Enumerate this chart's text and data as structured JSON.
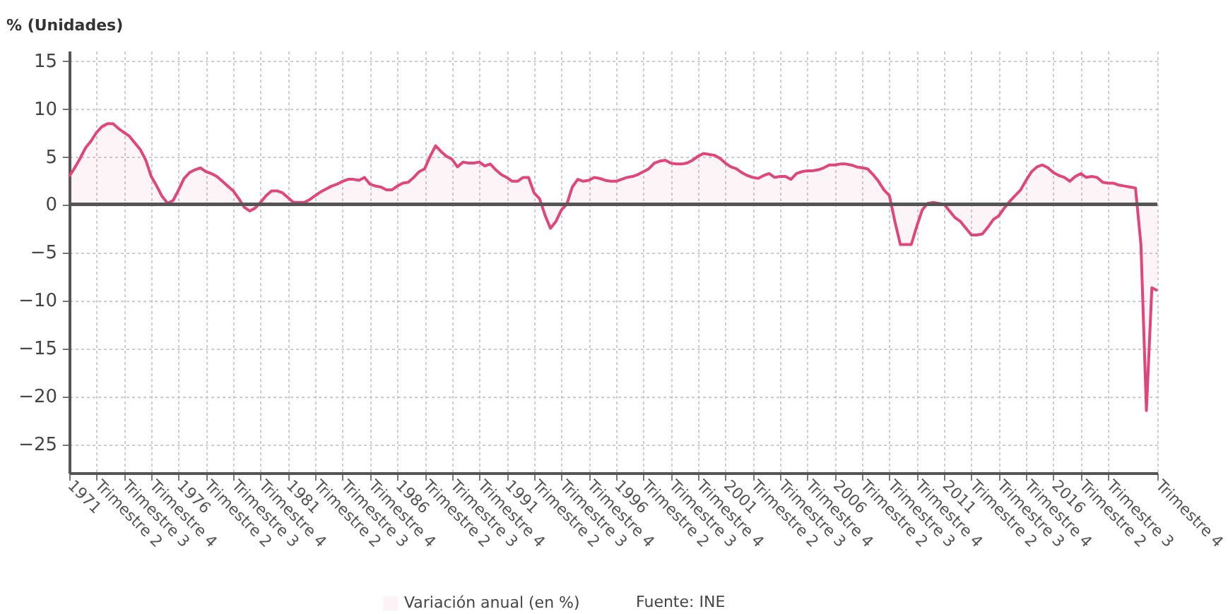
{
  "chart_data": {
    "type": "area",
    "ylabel": "% (Unidades)",
    "categories": [
      "1971",
      null,
      null,
      null,
      null,
      "Trimestre 2",
      null,
      null,
      null,
      null,
      "Trimestre 3",
      null,
      null,
      null,
      null,
      "Trimestre 4",
      null,
      null,
      null,
      null,
      "1976",
      null,
      null,
      null,
      null,
      "Trimestre 2",
      null,
      null,
      null,
      null,
      "Trimestre 3",
      null,
      null,
      null,
      null,
      "Trimestre 4",
      null,
      null,
      null,
      null,
      "1981",
      null,
      null,
      null,
      null,
      "Trimestre 2",
      null,
      null,
      null,
      null,
      "Trimestre 3",
      null,
      null,
      null,
      null,
      "Trimestre 4",
      null,
      null,
      null,
      null,
      "1986",
      null,
      null,
      null,
      null,
      "Trimestre 2",
      null,
      null,
      null,
      null,
      "Trimestre 3",
      null,
      null,
      null,
      null,
      "Trimestre 4",
      null,
      null,
      null,
      null,
      "1991",
      null,
      null,
      null,
      null,
      "Trimestre 2",
      null,
      null,
      null,
      null,
      "Trimestre 3",
      null,
      null,
      null,
      null,
      "Trimestre 4",
      null,
      null,
      null,
      null,
      "1996",
      null,
      null,
      null,
      null,
      "Trimestre 2",
      null,
      null,
      null,
      null,
      "Trimestre 3",
      null,
      null,
      null,
      null,
      "Trimestre 4",
      null,
      null,
      null,
      null,
      "2001",
      null,
      null,
      null,
      null,
      "Trimestre 2",
      null,
      null,
      null,
      null,
      "Trimestre 3",
      null,
      null,
      null,
      null,
      "Trimestre 4",
      null,
      null,
      null,
      null,
      "2006",
      null,
      null,
      null,
      null,
      "Trimestre 2",
      null,
      null,
      null,
      null,
      "Trimestre 3",
      null,
      null,
      null,
      null,
      "Trimestre 4",
      null,
      null,
      null,
      null,
      "2011",
      null,
      null,
      null,
      null,
      "Trimestre 2",
      null,
      null,
      null,
      null,
      "Trimestre 3",
      null,
      null,
      null,
      null,
      "Trimestre 4",
      null,
      null,
      null,
      null,
      "2016",
      null,
      null,
      null,
      null,
      "Trimestre 2",
      null,
      null,
      null,
      null,
      "Trimestre 3",
      null,
      null,
      null,
      null,
      null,
      null,
      null,
      null,
      "Trimestre 4"
    ],
    "series": [
      {
        "name": "Variación anual (en %)",
        "color": "#e0457b",
        "values": [
          2.9,
          3.8,
          4.8,
          5.9,
          6.6,
          7.5,
          8.1,
          8.4,
          8.4,
          7.9,
          7.5,
          7.1,
          6.4,
          5.7,
          4.6,
          2.9,
          1.9,
          0.8,
          0.1,
          0.4,
          1.5,
          2.7,
          3.3,
          3.6,
          3.8,
          3.4,
          3.2,
          2.9,
          2.4,
          1.9,
          1.4,
          0.6,
          -0.3,
          -0.7,
          -0.4,
          0.2,
          0.9,
          1.4,
          1.4,
          1.2,
          0.7,
          0.2,
          0.2,
          0.2,
          0.5,
          0.9,
          1.3,
          1.6,
          1.9,
          2.1,
          2.4,
          2.6,
          2.6,
          2.5,
          2.8,
          2.1,
          1.9,
          1.8,
          1.5,
          1.5,
          1.9,
          2.2,
          2.3,
          2.8,
          3.4,
          3.7,
          5.0,
          6.1,
          5.5,
          5.0,
          4.7,
          3.9,
          4.4,
          4.3,
          4.3,
          4.4,
          4.0,
          4.2,
          3.6,
          3.1,
          2.8,
          2.4,
          2.4,
          2.8,
          2.8,
          1.2,
          0.6,
          -1.1,
          -2.5,
          -1.8,
          -0.6,
          0.0,
          1.8,
          2.6,
          2.4,
          2.5,
          2.8,
          2.7,
          2.5,
          2.4,
          2.4,
          2.6,
          2.8,
          2.9,
          3.1,
          3.4,
          3.7,
          4.3,
          4.5,
          4.6,
          4.3,
          4.2,
          4.2,
          4.3,
          4.6,
          5.0,
          5.3,
          5.2,
          5.1,
          4.8,
          4.3,
          3.9,
          3.7,
          3.3,
          3.0,
          2.8,
          2.7,
          3.0,
          3.2,
          2.8,
          2.9,
          2.9,
          2.6,
          3.2,
          3.4,
          3.5,
          3.5,
          3.6,
          3.8,
          4.1,
          4.1,
          4.2,
          4.2,
          4.1,
          3.9,
          3.8,
          3.7,
          3.1,
          2.4,
          1.5,
          0.9,
          -1.8,
          -4.2,
          -4.2,
          -4.2,
          -2.3,
          -0.6,
          0.1,
          0.2,
          0.1,
          0.0,
          -0.7,
          -1.4,
          -1.8,
          -2.5,
          -3.2,
          -3.2,
          -3.1,
          -2.4,
          -1.6,
          -1.2,
          -0.4,
          0.3,
          0.9,
          1.5,
          2.5,
          3.4,
          3.9,
          4.1,
          3.8,
          3.3,
          3.0,
          2.8,
          2.4,
          2.9,
          3.2,
          2.8,
          2.9,
          2.8,
          2.3,
          2.2,
          2.2,
          2.0,
          1.9,
          1.8,
          1.7,
          -4.2,
          -21.5,
          -8.7,
          -9.0
        ]
      }
    ],
    "ylim": [
      -28,
      16
    ],
    "yticks": [
      -25,
      -20,
      -15,
      -10,
      -5,
      0,
      5,
      10,
      15
    ],
    "ref_lines": [
      {
        "axis": "y",
        "value": 0,
        "color": "#555555"
      }
    ],
    "grid": true,
    "legend": "bottom",
    "marker": "none",
    "annotations": [
      "Fuente: INE"
    ]
  }
}
